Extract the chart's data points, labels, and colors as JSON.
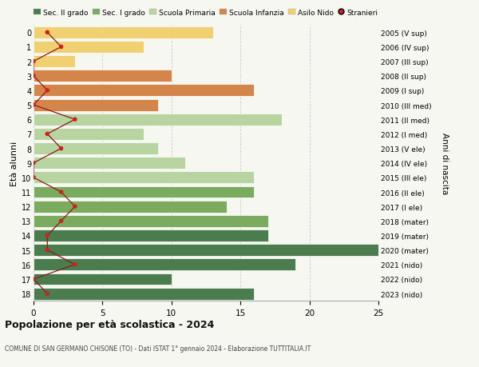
{
  "ages": [
    18,
    17,
    16,
    15,
    14,
    13,
    12,
    11,
    10,
    9,
    8,
    7,
    6,
    5,
    4,
    3,
    2,
    1,
    0
  ],
  "right_labels": [
    "2005 (V sup)",
    "2006 (IV sup)",
    "2007 (III sup)",
    "2008 (II sup)",
    "2009 (I sup)",
    "2010 (III med)",
    "2011 (II med)",
    "2012 (I med)",
    "2013 (V ele)",
    "2014 (IV ele)",
    "2015 (III ele)",
    "2016 (II ele)",
    "2017 (I ele)",
    "2018 (mater)",
    "2019 (mater)",
    "2020 (mater)",
    "2021 (nido)",
    "2022 (nido)",
    "2023 (nido)"
  ],
  "bar_values": [
    16,
    10,
    19,
    25,
    17,
    17,
    14,
    16,
    16,
    11,
    9,
    8,
    18,
    9,
    16,
    10,
    3,
    8,
    13
  ],
  "bar_colors": [
    "#4a7c4e",
    "#4a7c4e",
    "#4a7c4e",
    "#4a7c4e",
    "#4a7c4e",
    "#7aab5e",
    "#7aab5e",
    "#7aab5e",
    "#b8d4a0",
    "#b8d4a0",
    "#b8d4a0",
    "#b8d4a0",
    "#b8d4a0",
    "#d4854a",
    "#d4854a",
    "#d4854a",
    "#f0d070",
    "#f0d070",
    "#f0d070"
  ],
  "stranieri_values": [
    1,
    0,
    3,
    1,
    1,
    2,
    3,
    2,
    0,
    0,
    2,
    1,
    3,
    0,
    1,
    0,
    0,
    2,
    1
  ],
  "title": "Popolazione per età scolastica - 2024",
  "subtitle": "COMUNE DI SAN GERMANO CHISONE (TO) - Dati ISTAT 1° gennaio 2024 - Elaborazione TUTTITALIA.IT",
  "ylabel": "Età alunni",
  "ylabel_right": "Anni di nascita",
  "xlim": [
    0,
    25
  ],
  "legend_labels": [
    "Sec. II grado",
    "Sec. I grado",
    "Scuola Primaria",
    "Scuola Infanzia",
    "Asilo Nido",
    "Stranieri"
  ],
  "legend_colors": [
    "#4a7c4e",
    "#7aab5e",
    "#b8d4a0",
    "#d4854a",
    "#f0d070",
    "#cc2222"
  ],
  "bg_color": "#f7f7f2",
  "grid_color": "#cccccc",
  "stranieri_line_color": "#8b1a1a",
  "stranieri_dot_color": "#cc2222"
}
